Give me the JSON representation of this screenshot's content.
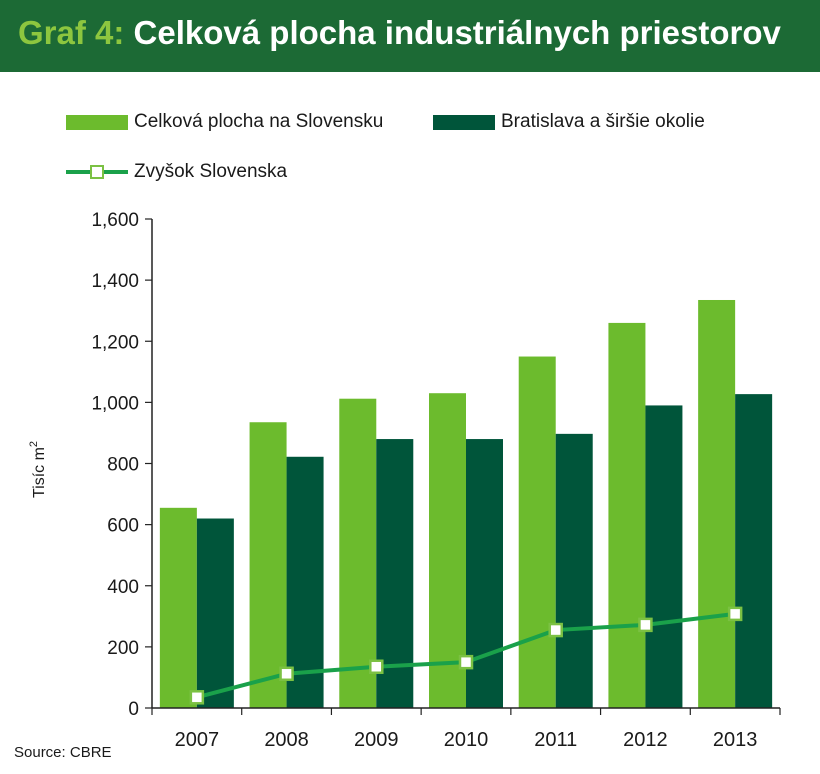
{
  "title": {
    "prefix": "Graf 4:",
    "text": "Celková plocha industriálnych priestorov"
  },
  "source": "Source:  CBRE",
  "colors": {
    "title_bg": "#1c6a35",
    "light_green": "#6cbb2d",
    "dark_green": "#00553a",
    "line": "#1aa14a",
    "marker_border": "#7bc143"
  },
  "chart_data": {
    "type": "bar",
    "categories": [
      "2007",
      "2008",
      "2009",
      "2010",
      "2011",
      "2012",
      "2013"
    ],
    "series": [
      {
        "name": "Celková plocha na Slovensku",
        "kind": "bar",
        "values": [
          655,
          935,
          1012,
          1030,
          1150,
          1260,
          1335
        ]
      },
      {
        "name": "Bratislava a širšie okolie",
        "kind": "bar",
        "values": [
          620,
          822,
          880,
          880,
          897,
          990,
          1027
        ]
      },
      {
        "name": "Zvyšok Slovenska",
        "kind": "line",
        "values": [
          35,
          112,
          135,
          150,
          255,
          272,
          308
        ]
      }
    ],
    "ylabel": "Tisíc m",
    "ylabel_sup": "2",
    "ylim": [
      0,
      1600
    ],
    "yticks": [
      0,
      200,
      400,
      600,
      800,
      1000,
      1200,
      1400,
      1600
    ],
    "ytick_labels": [
      "0",
      "200",
      "400",
      "600",
      "800",
      "1,000",
      "1,200",
      "1,400",
      "1,600"
    ],
    "grid": false,
    "legend_position": "top"
  }
}
